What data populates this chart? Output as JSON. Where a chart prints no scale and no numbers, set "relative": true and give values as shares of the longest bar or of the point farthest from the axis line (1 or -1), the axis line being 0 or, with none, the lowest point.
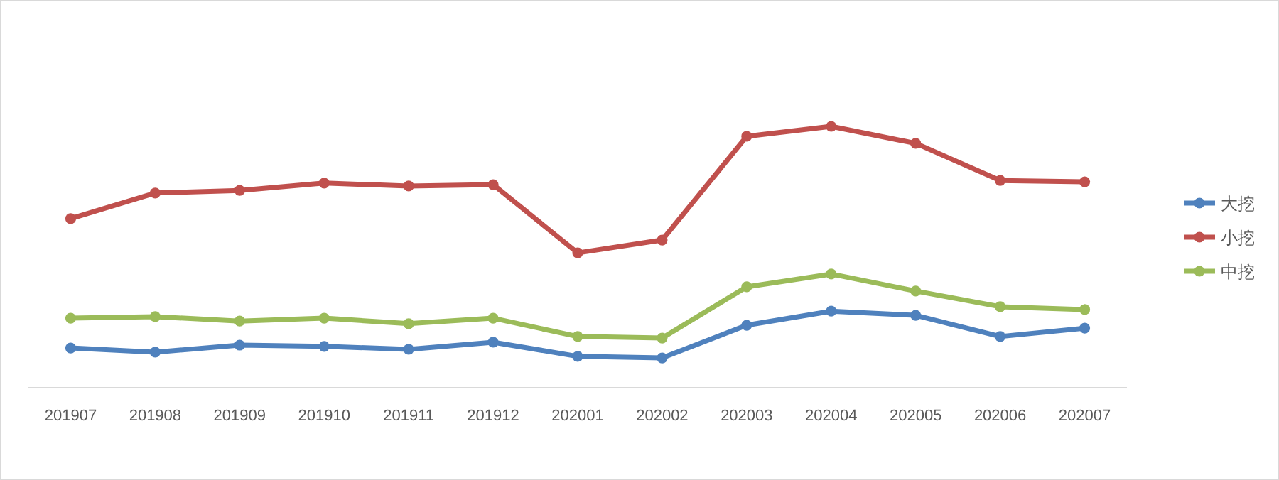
{
  "chart_data": {
    "type": "line",
    "relative": true,
    "marker": "circle",
    "line_style": "solid",
    "grid": false,
    "legend": "right",
    "categories": [
      "201907",
      "201908",
      "201909",
      "201910",
      "201911",
      "201912",
      "202001",
      "202002",
      "202003",
      "202004",
      "202005",
      "202006",
      "202007"
    ],
    "series": [
      {
        "name": "大挖",
        "color": "#4f81bd",
        "values": [
          0.152,
          0.136,
          0.163,
          0.158,
          0.147,
          0.174,
          0.12,
          0.114,
          0.239,
          0.293,
          0.277,
          0.196,
          0.228
        ]
      },
      {
        "name": "小挖",
        "color": "#c0504d",
        "values": [
          0.647,
          0.745,
          0.755,
          0.783,
          0.772,
          0.777,
          0.516,
          0.565,
          0.962,
          1,
          0.935,
          0.793,
          0.788
        ]
      },
      {
        "name": "中挖",
        "color": "#9bbb59",
        "values": [
          0.266,
          0.272,
          0.255,
          0.266,
          0.245,
          0.266,
          0.196,
          0.19,
          0.386,
          0.435,
          0.37,
          0.31,
          0.299
        ]
      }
    ]
  }
}
